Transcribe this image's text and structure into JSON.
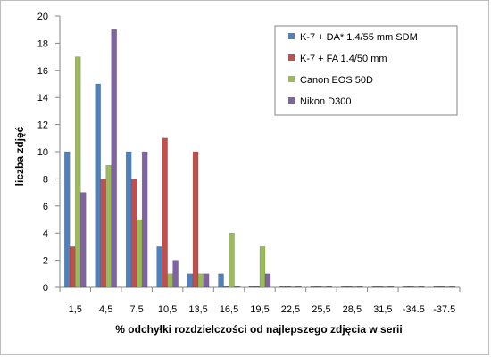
{
  "chart_data": {
    "type": "bar",
    "title": "",
    "xlabel": "% odchyłki rozdzielczości od najlepszego zdjęcia w serii",
    "ylabel": "liczba zdjęć",
    "categories": [
      "1,5",
      "4,5",
      "7,5",
      "10,5",
      "13,5",
      "16,5",
      "19,5",
      "22,5",
      "25,5",
      "28,5",
      "31,5",
      "-34.5",
      "-37.5"
    ],
    "ylim": [
      0,
      20
    ],
    "yticks": [
      0,
      2,
      4,
      6,
      8,
      10,
      12,
      14,
      16,
      18,
      20
    ],
    "grid": false,
    "legend_position": "top-right",
    "series": [
      {
        "name": "K-7 + DA* 1.4/55 mm SDM",
        "color": "#4f81bd",
        "values": [
          10,
          15,
          10,
          3,
          1,
          1,
          0,
          0,
          0,
          0,
          0,
          0,
          0
        ]
      },
      {
        "name": "K-7 + FA 1.4/50 mm",
        "color": "#c0504d",
        "values": [
          3,
          8,
          8,
          11,
          10,
          0,
          0,
          0,
          0,
          0,
          0,
          0,
          0
        ]
      },
      {
        "name": "Canon EOS 50D",
        "color": "#9bbb59",
        "values": [
          17,
          9,
          5,
          1,
          1,
          4,
          3,
          0,
          0,
          0,
          0,
          0,
          0
        ]
      },
      {
        "name": "Nikon D300",
        "color": "#8064a2",
        "values": [
          7,
          19,
          10,
          2,
          1,
          0,
          1,
          0,
          0,
          0,
          0,
          0,
          0
        ]
      }
    ]
  }
}
